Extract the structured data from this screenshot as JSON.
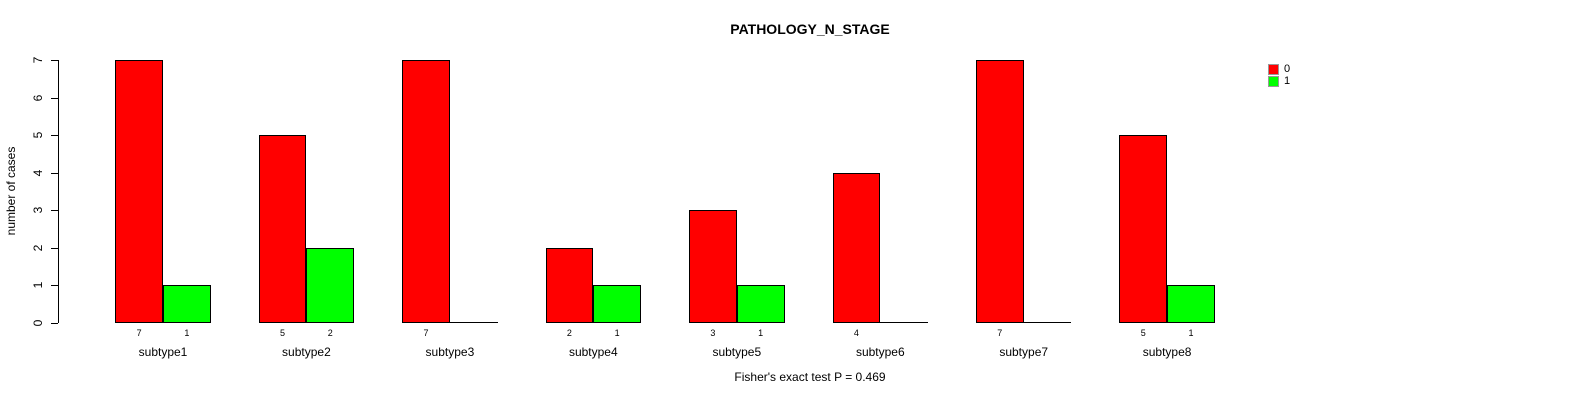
{
  "chart_data": {
    "type": "bar",
    "title": "PATHOLOGY_N_STAGE",
    "ylabel": "number of cases",
    "annotation": "Fisher's exact test P = 0.469",
    "categories": [
      "subtype1",
      "subtype2",
      "subtype3",
      "subtype4",
      "subtype5",
      "subtype6",
      "subtype7",
      "subtype8"
    ],
    "series": [
      {
        "name": "0",
        "color": "#FF0000",
        "values": [
          7,
          5,
          7,
          2,
          3,
          4,
          7,
          5
        ]
      },
      {
        "name": "1",
        "color": "#00FF00",
        "values": [
          1,
          2,
          0,
          1,
          1,
          0,
          0,
          1
        ]
      }
    ],
    "ylim": [
      0,
      7
    ],
    "yticks": [
      0,
      1,
      2,
      3,
      4,
      5,
      6,
      7
    ],
    "grid": false,
    "legend_position": "top-right",
    "bar_value_labels": "shown under each bar, only for non-zero values",
    "colors": {
      "bar_border": "#000000",
      "text": "#000000",
      "background": "#FFFFFF"
    }
  }
}
